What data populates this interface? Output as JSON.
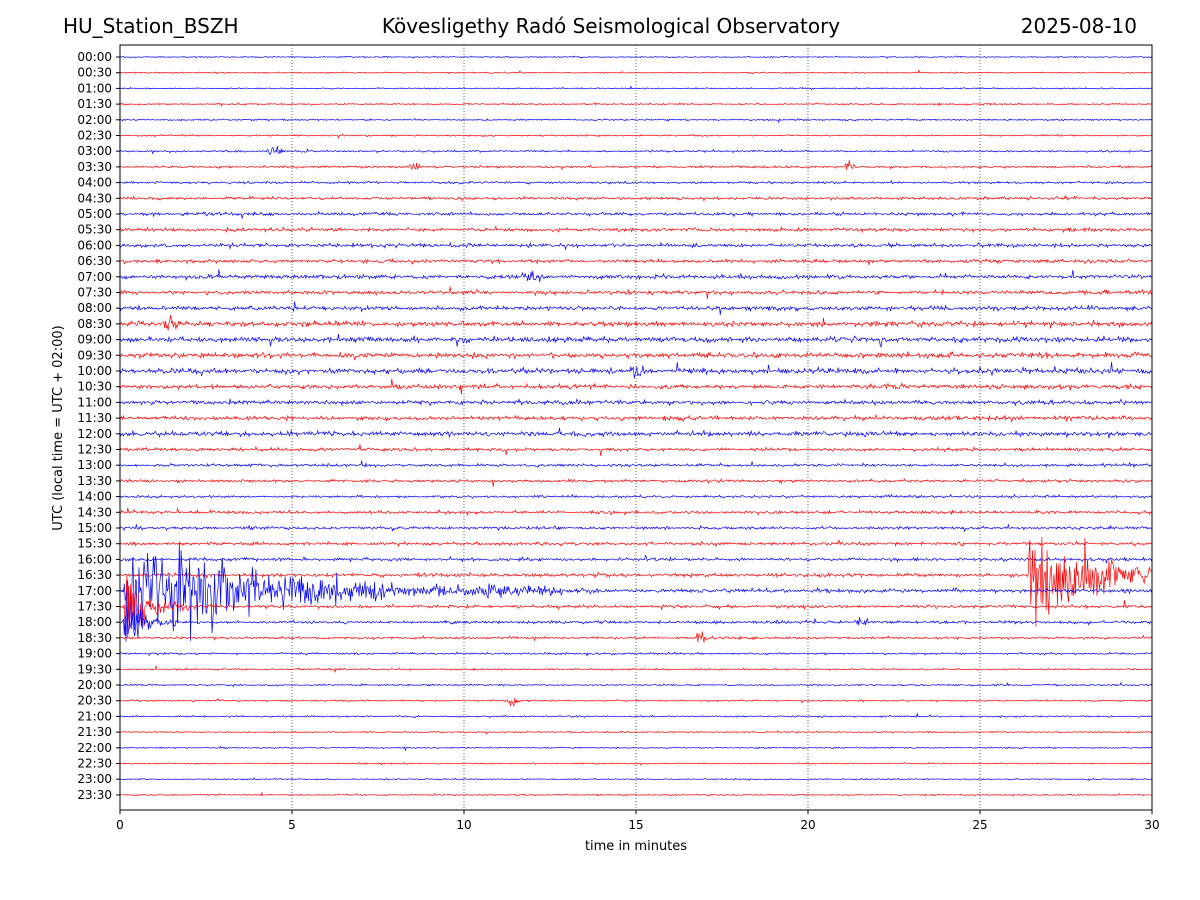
{
  "header": {
    "station": "HU_Station_BSZH",
    "observatory": "Kövesligethy Radó Seismological Observatory",
    "date": "2025-08-10"
  },
  "chart_data": {
    "type": "line",
    "title": "Kövesligethy Radó Seismological Observatory",
    "xlabel": "time in minutes",
    "ylabel": "UTC (local time = UTC + 02:00)",
    "xlim": [
      0,
      30
    ],
    "x_ticks": [
      0,
      5,
      10,
      15,
      20,
      25,
      30
    ],
    "grid": "vertical dotted",
    "colors": [
      "#0000ff",
      "#ff0000"
    ],
    "row_labels": [
      "00:00",
      "00:30",
      "01:00",
      "01:30",
      "02:00",
      "02:30",
      "03:00",
      "03:30",
      "04:00",
      "04:30",
      "05:00",
      "05:30",
      "06:00",
      "06:30",
      "07:00",
      "07:30",
      "08:00",
      "08:30",
      "09:00",
      "09:30",
      "10:00",
      "10:30",
      "11:00",
      "11:30",
      "12:00",
      "12:30",
      "13:00",
      "13:30",
      "14:00",
      "14:30",
      "15:00",
      "15:30",
      "16:00",
      "16:30",
      "17:00",
      "17:30",
      "18:00",
      "18:30",
      "19:00",
      "19:30",
      "20:00",
      "20:30",
      "21:00",
      "21:30",
      "22:00",
      "22:30",
      "23:00",
      "23:30"
    ],
    "noise_levels": [
      0.4,
      0.4,
      0.4,
      0.5,
      0.5,
      0.5,
      0.6,
      0.7,
      0.7,
      0.9,
      1.0,
      1.1,
      1.1,
      1.1,
      1.2,
      1.2,
      1.3,
      1.6,
      1.6,
      1.6,
      1.6,
      1.3,
      1.3,
      1.3,
      1.4,
      1.0,
      0.9,
      0.9,
      0.8,
      0.9,
      0.9,
      1.0,
      1.0,
      1.1,
      1.2,
      1.0,
      0.9,
      0.7,
      0.6,
      0.5,
      0.5,
      0.5,
      0.5,
      0.4,
      0.4,
      0.4,
      0.4,
      0.4
    ],
    "events": [
      {
        "row": 6,
        "t": 4.2,
        "amp": 3,
        "dur": 0.6
      },
      {
        "row": 7,
        "t": 8.4,
        "amp": 3,
        "dur": 0.4
      },
      {
        "row": 7,
        "t": 21.0,
        "amp": 3,
        "dur": 0.4
      },
      {
        "row": 14,
        "t": 11.6,
        "amp": 4,
        "dur": 0.8
      },
      {
        "row": 17,
        "t": 1.2,
        "amp": 4,
        "dur": 0.6
      },
      {
        "row": 20,
        "t": 14.8,
        "amp": 5,
        "dur": 0.5
      },
      {
        "row": 33,
        "t": 26.4,
        "amp": 40,
        "dur": 3.6
      },
      {
        "row": 34,
        "t": 0.1,
        "amp": 35,
        "dur": 8.0
      },
      {
        "row": 35,
        "t": 0.1,
        "amp": 26,
        "dur": 1.2
      },
      {
        "row": 36,
        "t": 0.1,
        "amp": 18,
        "dur": 1.0
      },
      {
        "row": 36,
        "t": 21.4,
        "amp": 4,
        "dur": 0.4
      },
      {
        "row": 37,
        "t": 16.7,
        "amp": 4,
        "dur": 0.4
      },
      {
        "row": 41,
        "t": 11.2,
        "amp": 4,
        "dur": 0.4
      }
    ]
  }
}
